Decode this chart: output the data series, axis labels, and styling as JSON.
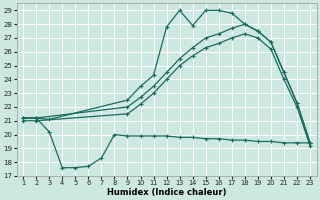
{
  "bg_color": "#cce8e0",
  "grid_color": "#ffffff",
  "line_color": "#1a6b5e",
  "xlabel": "Humidex (Indice chaleur)",
  "xlim": [
    0.5,
    23.5
  ],
  "ylim": [
    17,
    29.5
  ],
  "yticks": [
    17,
    18,
    19,
    20,
    21,
    22,
    23,
    24,
    25,
    26,
    27,
    28,
    29
  ],
  "xticks": [
    1,
    2,
    3,
    4,
    5,
    6,
    7,
    8,
    9,
    10,
    11,
    12,
    13,
    14,
    15,
    16,
    17,
    18,
    19,
    20,
    21,
    22,
    23
  ],
  "s1_x": [
    1,
    2,
    3,
    4,
    5,
    6,
    7,
    8,
    9,
    10,
    11,
    12,
    13,
    14,
    15,
    16,
    17,
    18,
    19,
    20,
    21,
    22,
    23
  ],
  "s1_y": [
    21.2,
    21.2,
    20.2,
    17.6,
    17.6,
    17.7,
    18.3,
    20.0,
    19.9,
    19.9,
    19.9,
    19.9,
    19.8,
    19.8,
    19.7,
    19.7,
    19.6,
    19.6,
    19.5,
    19.5,
    19.4,
    19.4,
    19.4
  ],
  "s2_x": [
    1,
    2,
    3,
    9,
    10,
    11,
    12,
    13,
    14,
    15,
    16,
    17,
    18,
    19,
    20,
    21,
    22,
    23
  ],
  "s2_y": [
    21.2,
    21.2,
    21.1,
    22.5,
    23.5,
    24.3,
    27.8,
    29.0,
    27.9,
    29.0,
    29.0,
    28.8,
    28.0,
    27.5,
    26.7,
    24.5,
    22.3,
    19.4
  ],
  "s3_x": [
    1,
    2,
    9,
    10,
    11,
    12,
    13,
    14,
    15,
    16,
    17,
    18,
    19,
    20,
    21,
    22,
    23
  ],
  "s3_y": [
    21.2,
    21.2,
    22.0,
    22.7,
    23.5,
    24.5,
    25.5,
    26.3,
    27.0,
    27.3,
    27.7,
    28.0,
    27.5,
    26.7,
    24.5,
    22.3,
    19.4
  ],
  "s4_x": [
    1,
    2,
    9,
    10,
    11,
    12,
    13,
    14,
    15,
    16,
    17,
    18,
    19,
    20,
    21,
    22,
    23
  ],
  "s4_y": [
    21.0,
    21.0,
    21.5,
    22.2,
    23.0,
    24.0,
    25.0,
    25.7,
    26.3,
    26.6,
    27.0,
    27.3,
    27.0,
    26.2,
    24.0,
    22.0,
    19.2
  ]
}
